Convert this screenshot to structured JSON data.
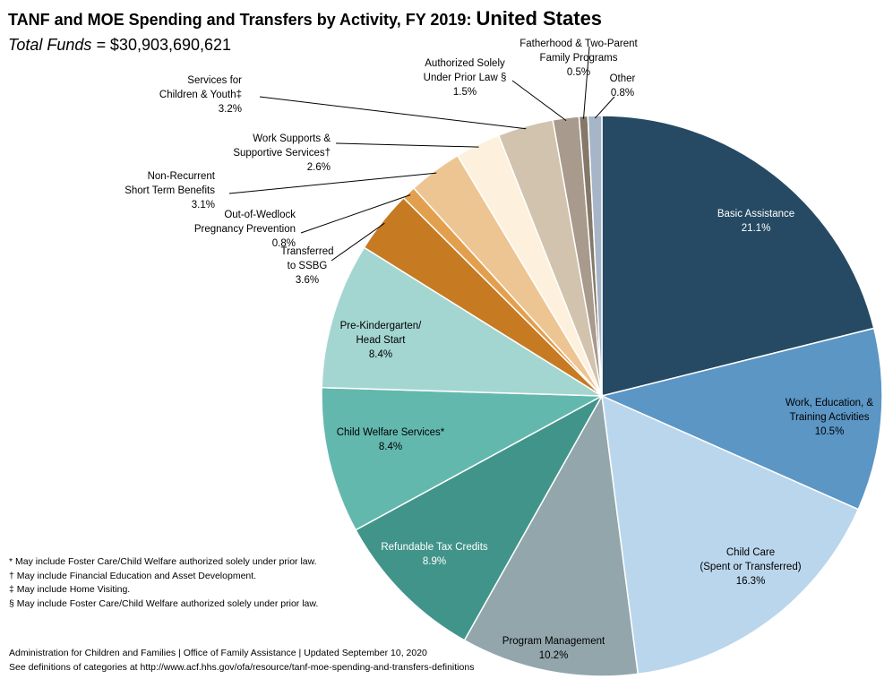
{
  "header": {
    "title_main": "TANF and MOE Spending and Transfers by Activity, FY 2019: ",
    "title_region": "United States",
    "total_label": "Total Funds =",
    "total_value": "$30,903,690,621"
  },
  "chart_data": {
    "type": "pie",
    "title": "TANF and MOE Spending and Transfers by Activity, FY 2019: United States",
    "subtitle": "Total Funds = $30,903,690,621",
    "start": "12 o'clock, clockwise",
    "slices": [
      {
        "key": "basic",
        "label": [
          "Basic Assistance"
        ],
        "pct": "21.1%",
        "value": 21.1,
        "color": "#264a63"
      },
      {
        "key": "work",
        "label": [
          "Work, Education, &",
          "Training Activities"
        ],
        "pct": "10.5%",
        "value": 10.5,
        "color": "#5b96c5"
      },
      {
        "key": "childcare",
        "label": [
          "Child Care",
          "(Spent or Transferred)"
        ],
        "pct": "16.3%",
        "value": 16.3,
        "color": "#bad6ec"
      },
      {
        "key": "progmgmt",
        "label": [
          "Program Management"
        ],
        "pct": "10.2%",
        "value": 10.2,
        "color": "#92a6ab"
      },
      {
        "key": "refundable",
        "label": [
          "Refundable Tax Credits"
        ],
        "pct": "8.9%",
        "value": 8.9,
        "color": "#41948a"
      },
      {
        "key": "cws",
        "label": [
          "Child Welfare Services*"
        ],
        "pct": "8.4%",
        "value": 8.4,
        "color": "#63b8ae"
      },
      {
        "key": "prek",
        "label": [
          "Pre-Kindergarten/",
          "Head Start"
        ],
        "pct": "8.4%",
        "value": 8.4,
        "color": "#a4d6d1"
      },
      {
        "key": "ssbg",
        "label": [
          "Transferred",
          "to SSBG"
        ],
        "pct": "3.6%",
        "value": 3.6,
        "color": "#c67a22"
      },
      {
        "key": "wedlock",
        "label": [
          "Out-of-Wedlock",
          "Pregnancy Prevention"
        ],
        "pct": "0.8%",
        "value": 0.8,
        "color": "#e2a04f"
      },
      {
        "key": "nonrec",
        "label": [
          "Non-Recurrent",
          "Short Term  Benefits"
        ],
        "pct": "3.1%",
        "value": 3.1,
        "color": "#edc593"
      },
      {
        "key": "worksup",
        "label": [
          "Work Supports &",
          "Supportive Services†"
        ],
        "pct": "2.6%",
        "value": 2.6,
        "color": "#fdf0dc"
      },
      {
        "key": "children",
        "label": [
          "Services for",
          "Children & Youth‡"
        ],
        "pct": "3.2%",
        "value": 3.2,
        "color": "#d1c3ad"
      },
      {
        "key": "prior",
        "label": [
          "Authorized Solely",
          "Under  Prior Law §"
        ],
        "pct": "1.5%",
        "value": 1.5,
        "color": "#a89a8c"
      },
      {
        "key": "fatherhood",
        "label": [
          "Fatherhood & Two-Parent",
          "Family Programs"
        ],
        "pct": "0.5%",
        "value": 0.5,
        "color": "#857868"
      },
      {
        "key": "other",
        "label": [
          "Other"
        ],
        "pct": "0.8%",
        "value": 0.8,
        "color": "#a6b6c8"
      }
    ]
  },
  "notes": [
    "* May include Foster Care/Child Welfare authorized solely under prior law.",
    "† May include Financial Education and Asset Development.",
    "‡ May include Home Visiting.",
    "§ May include Foster Care/Child Welfare authorized solely under prior law."
  ],
  "footer": {
    "line1": "Administration for Children and Families | Office of Family Assistance | Updated September 10, 2020",
    "line2": "See definitions of categories at http://www.acf.hhs.gov/ofa/resource/tanf-moe-spending-and-transfers-definitions"
  }
}
